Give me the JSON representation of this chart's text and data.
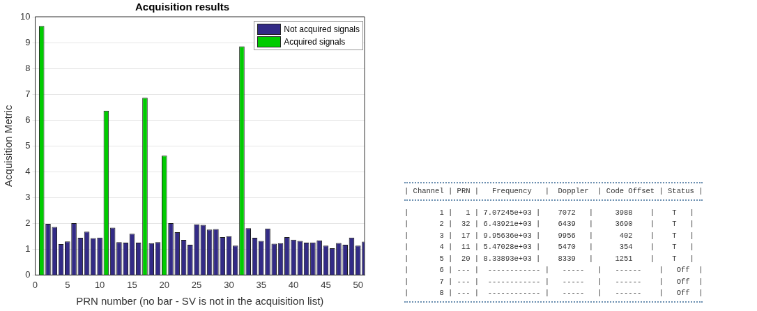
{
  "chart_data": [
    {
      "type": "bar",
      "title": "Acquisition results",
      "xlabel": "PRN number (no bar - SV is not in the acquisition list)",
      "ylabel": "Acquisition Metric",
      "xlim": [
        0,
        51
      ],
      "xticks": [
        0,
        5,
        10,
        15,
        20,
        25,
        30,
        35,
        40,
        45,
        50
      ],
      "ylim": [
        0,
        10
      ],
      "yticks": [
        0,
        1,
        2,
        3,
        4,
        5,
        6,
        7,
        8,
        9,
        10
      ],
      "grid": "y",
      "legend": "top right",
      "series": [
        {
          "name": "Not acquired signals",
          "color": "#332b86",
          "x": [
            2,
            3,
            4,
            5,
            6,
            7,
            8,
            9,
            10,
            12,
            13,
            14,
            15,
            16,
            18,
            19,
            21,
            22,
            23,
            24,
            25,
            26,
            27,
            28,
            29,
            30,
            31,
            33,
            34,
            35,
            36,
            37,
            38,
            39,
            40,
            41,
            42,
            43,
            44,
            45,
            46,
            47,
            48,
            49,
            50,
            51
          ],
          "values": [
            1.98,
            1.86,
            1.2,
            1.3,
            2.01,
            1.44,
            1.68,
            1.43,
            1.45,
            1.83,
            1.27,
            1.25,
            1.6,
            1.25,
            1.23,
            1.27,
            2.01,
            1.66,
            1.36,
            1.17,
            1.96,
            1.94,
            1.76,
            1.78,
            1.47,
            1.5,
            1.14,
            1.81,
            1.44,
            1.32,
            1.8,
            1.21,
            1.23,
            1.47,
            1.37,
            1.32,
            1.25,
            1.26,
            1.34,
            1.14,
            1.04,
            1.24,
            1.17,
            1.45,
            1.14,
            1.29
          ]
        },
        {
          "name": "Acquired signals",
          "color": "#00cc00",
          "x": [
            1,
            11,
            17,
            20,
            32
          ],
          "values": [
            9.64,
            6.36,
            6.86,
            4.62,
            8.85
          ]
        }
      ]
    },
    {
      "type": "other",
      "annotations": [
        "| Channel | PRN |   Frequency   |  Doppler  | Code Offset | Status |",
        "|       1 |   1 | 7.07245e+03 |    7072   |     3988    |    T   |",
        "|       2 |  32 | 6.43921e+03 |    6439   |     3690    |    T   |",
        "|       3 |  17 | 9.95636e+03 |    9956   |      402    |    T   |",
        "|       4 |  11 | 5.47028e+03 |    5470   |      354    |    T   |",
        "|       5 |  20 | 8.33893e+03 |    8339   |     1251    |    T   |",
        "|       6 | --- |  ------------ |   -----   |   ------    |   Off  |",
        "|       7 | --- |  ------------ |   -----   |   ------    |   Off  |",
        "|       8 | --- |  ------------ |   -----   |   ------    |   Off  |"
      ]
    }
  ]
}
